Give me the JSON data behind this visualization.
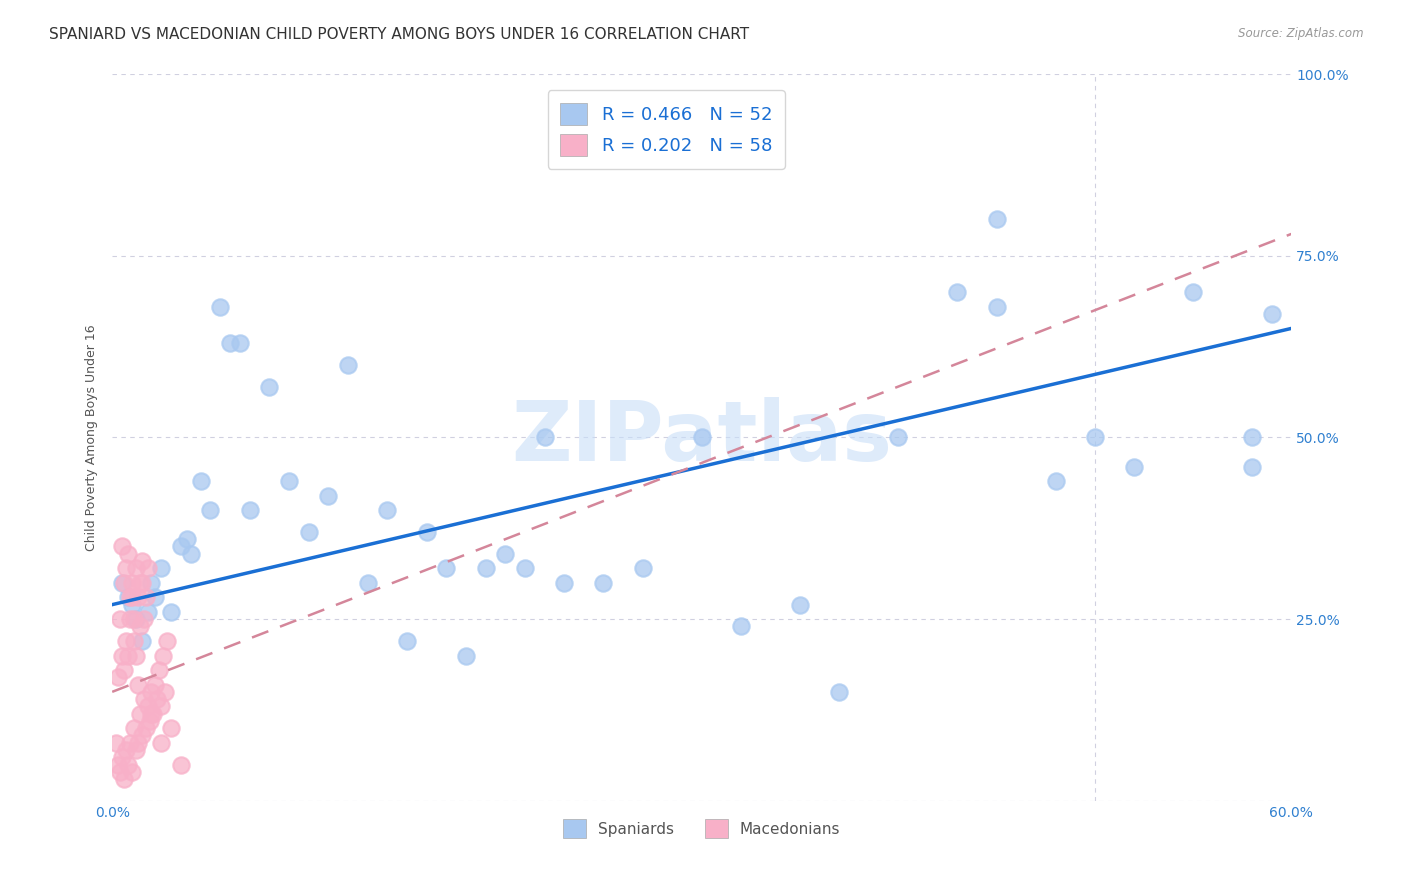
{
  "title": "SPANIARD VS MACEDONIAN CHILD POVERTY AMONG BOYS UNDER 16 CORRELATION CHART",
  "source": "Source: ZipAtlas.com",
  "ylabel": "Child Poverty Among Boys Under 16",
  "xlim": [
    0.0,
    0.6
  ],
  "ylim": [
    0.0,
    1.0
  ],
  "xticks": [
    0.0,
    0.1,
    0.2,
    0.3,
    0.4,
    0.5,
    0.6
  ],
  "xticklabels": [
    "0.0%",
    "",
    "",
    "",
    "",
    "",
    "60.0%"
  ],
  "yticks_right": [
    0.0,
    0.25,
    0.5,
    0.75,
    1.0
  ],
  "yticklabels_right": [
    "",
    "25.0%",
    "50.0%",
    "75.0%",
    "100.0%"
  ],
  "spaniards_R": 0.466,
  "spaniards_N": 52,
  "macedonians_R": 0.202,
  "macedonians_N": 58,
  "spaniard_color": "#a8c8f0",
  "macedonian_color": "#f8b0c8",
  "spaniard_line_color": "#1a6fd4",
  "macedonian_line_color": "#d4869a",
  "legend_color": "#1a6fd4",
  "watermark": "ZIPatlas",
  "watermark_color": "#c8def8",
  "spaniards_x": [
    0.005,
    0.008,
    0.01,
    0.012,
    0.015,
    0.018,
    0.02,
    0.022,
    0.025,
    0.03,
    0.035,
    0.038,
    0.04,
    0.045,
    0.05,
    0.055,
    0.06,
    0.065,
    0.07,
    0.08,
    0.09,
    0.1,
    0.11,
    0.12,
    0.13,
    0.14,
    0.15,
    0.16,
    0.17,
    0.18,
    0.19,
    0.2,
    0.21,
    0.22,
    0.23,
    0.25,
    0.27,
    0.3,
    0.32,
    0.35,
    0.37,
    0.4,
    0.43,
    0.45,
    0.5,
    0.52,
    0.55,
    0.58,
    0.58,
    0.59,
    0.45,
    0.48
  ],
  "spaniards_y": [
    0.3,
    0.28,
    0.27,
    0.25,
    0.22,
    0.26,
    0.3,
    0.28,
    0.32,
    0.26,
    0.35,
    0.36,
    0.34,
    0.44,
    0.4,
    0.68,
    0.63,
    0.63,
    0.4,
    0.57,
    0.44,
    0.37,
    0.42,
    0.6,
    0.3,
    0.4,
    0.22,
    0.37,
    0.32,
    0.2,
    0.32,
    0.34,
    0.32,
    0.5,
    0.3,
    0.3,
    0.32,
    0.5,
    0.24,
    0.27,
    0.15,
    0.5,
    0.7,
    0.8,
    0.5,
    0.46,
    0.7,
    0.46,
    0.5,
    0.67,
    0.68,
    0.44
  ],
  "macedonians_x": [
    0.002,
    0.003,
    0.004,
    0.005,
    0.006,
    0.007,
    0.008,
    0.009,
    0.01,
    0.011,
    0.012,
    0.013,
    0.014,
    0.015,
    0.016,
    0.017,
    0.018,
    0.019,
    0.02,
    0.021,
    0.022,
    0.023,
    0.024,
    0.025,
    0.026,
    0.027,
    0.028,
    0.003,
    0.004,
    0.005,
    0.006,
    0.007,
    0.008,
    0.009,
    0.01,
    0.011,
    0.012,
    0.013,
    0.014,
    0.015,
    0.016,
    0.017,
    0.018,
    0.005,
    0.006,
    0.007,
    0.008,
    0.009,
    0.01,
    0.011,
    0.012,
    0.013,
    0.014,
    0.015,
    0.02,
    0.025,
    0.03,
    0.035
  ],
  "macedonians_y": [
    0.08,
    0.05,
    0.04,
    0.06,
    0.03,
    0.07,
    0.05,
    0.08,
    0.04,
    0.1,
    0.07,
    0.08,
    0.12,
    0.09,
    0.14,
    0.1,
    0.13,
    0.11,
    0.15,
    0.12,
    0.16,
    0.14,
    0.18,
    0.13,
    0.2,
    0.15,
    0.22,
    0.17,
    0.25,
    0.2,
    0.18,
    0.22,
    0.2,
    0.25,
    0.28,
    0.22,
    0.2,
    0.16,
    0.24,
    0.3,
    0.25,
    0.28,
    0.32,
    0.35,
    0.3,
    0.32,
    0.34,
    0.28,
    0.3,
    0.25,
    0.32,
    0.28,
    0.3,
    0.33,
    0.12,
    0.08,
    0.1,
    0.05
  ],
  "background_color": "#ffffff",
  "grid_color": "#d0d0e0",
  "title_fontsize": 11,
  "axis_label_fontsize": 9
}
